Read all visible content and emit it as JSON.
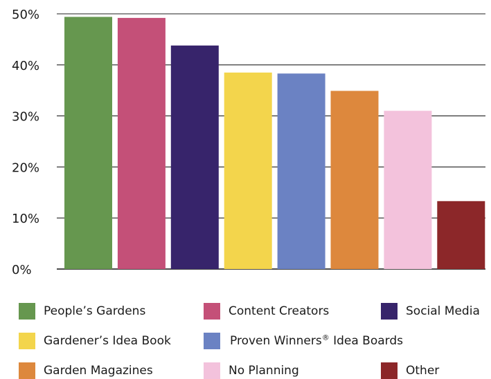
{
  "chart_data": {
    "type": "bar",
    "categories": [
      "People’s Gardens",
      "Content Creators",
      "Social Media",
      "Gardener’s Idea Book",
      "Proven Winners® Idea Boards",
      "Garden Magazines",
      "No Planning",
      "Other"
    ],
    "values": [
      49.4,
      49.2,
      43.8,
      38.5,
      38.3,
      34.9,
      31.0,
      13.3
    ],
    "colors": [
      "#66974f",
      "#c45078",
      "#37246b",
      "#f3d54c",
      "#6b82c3",
      "#dd883d",
      "#f3c2dc",
      "#8c2729"
    ],
    "title": "",
    "xlabel": "",
    "ylabel": "",
    "ylim": [
      0,
      50
    ],
    "yticks": [
      "0%",
      "10%",
      "20%",
      "30%",
      "40%",
      "50%"
    ],
    "grid": true,
    "legend_position": "bottom"
  },
  "legend": {
    "items": [
      {
        "label": "People’s Gardens",
        "color": "#66974f"
      },
      {
        "label": "Content Creators",
        "color": "#c45078"
      },
      {
        "label": "Social Media",
        "color": "#37246b"
      },
      {
        "label": "Gardener’s Idea Book",
        "color": "#f3d54c"
      },
      {
        "label": "Proven Winners",
        "reg_mark": "®",
        "label_suffix": " Idea Boards",
        "color": "#6b82c3"
      },
      {
        "label": "Garden Magazines",
        "color": "#dd883d"
      },
      {
        "label": "No Planning",
        "color": "#f3c2dc"
      },
      {
        "label": "Other",
        "color": "#8c2729"
      }
    ]
  }
}
